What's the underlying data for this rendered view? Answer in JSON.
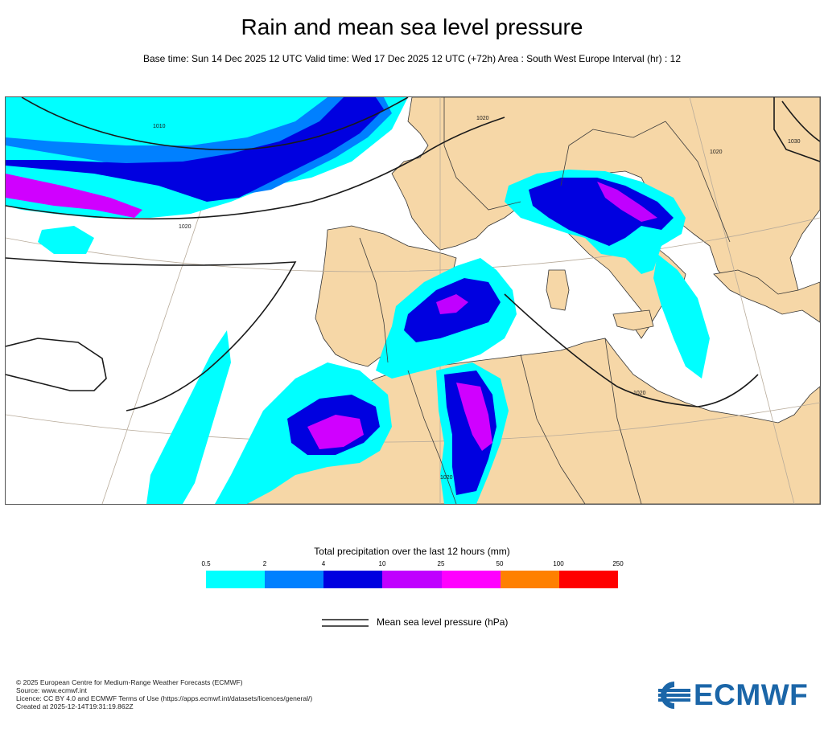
{
  "title": "Rain and mean sea level pressure",
  "subtitle": "Base time: Sun 14 Dec 2025 12 UTC Valid time: Wed 17 Dec 2025 12 UTC (+72h) Area : South West Europe Interval (hr) : 12",
  "map": {
    "isobar_labels": [
      "1010",
      "1020",
      "1020",
      "1020",
      "1020",
      "1020",
      "1030"
    ],
    "colors": {
      "land": "#f6d7a7",
      "sea": "#ffffff",
      "isobar": "#1a1a1a",
      "border": "#3c3c3c",
      "graticule": "#b8ab9a"
    }
  },
  "legend": {
    "title": "Total precipitation over the last 12 hours (mm)",
    "ticks": [
      "0.5",
      "2",
      "4",
      "10",
      "25",
      "50",
      "100",
      "250"
    ],
    "colors": [
      "#00ffff",
      "#0080ff",
      "#0000e0",
      "#c000ff",
      "#ff00ff",
      "#ff8000",
      "#ff0000"
    ],
    "mslp_label": "Mean sea level pressure (hPa)"
  },
  "footer": {
    "line1": "© 2025 European Centre for Medium-Range Weather Forecasts (ECMWF)",
    "line2": "Source: www.ecmwf.int",
    "line3": "Licence: CC BY 4.0 and ECMWF Terms of Use (https://apps.ecmwf.int/datasets/licences/general/)",
    "line4": "Created at 2025-12-14T19:31:19.862Z"
  },
  "logo": {
    "text": "ECMWF",
    "color": "#1b66a8"
  }
}
